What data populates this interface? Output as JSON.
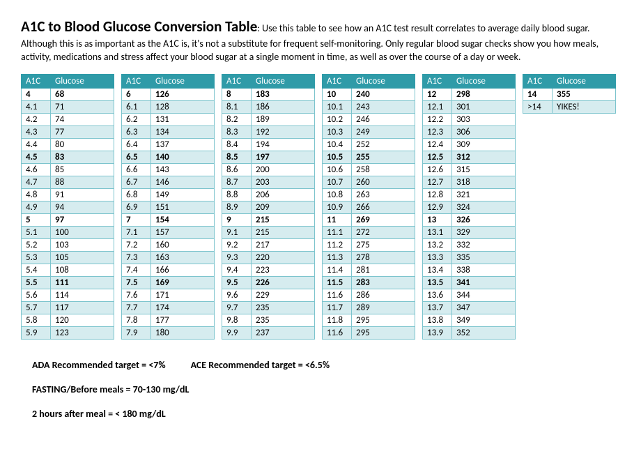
{
  "title_bold": "A1C to Blood Glucose Conversion Table",
  "title_rest": ": Use this table to see how an A1C test result correlates to average daily blood sugar.",
  "desc": "Although this is as important as the A1C is, it's not a substitute for frequent self-monitoring. Only regular blood sugar checks show you how meals, activity, medications and stress affect your blood sugar at a single moment in time, as well as over the course of a day or week.",
  "col_headers": {
    "a1c": "A1C",
    "glucose": "Glucose"
  },
  "colors": {
    "header_bg": "#2f9ba8",
    "header_text": "#ffffff",
    "row_alt_bg": "#d6ecef",
    "row_bg": "#ffffff",
    "border": "#7cc4cd",
    "text": "#000000"
  },
  "typography": {
    "font_family": "Calibri, Arial, sans-serif",
    "title_size_pt": 16,
    "body_size_pt": 11,
    "table_size_pt": 10
  },
  "tables": [
    {
      "rows": [
        {
          "a1c": "4",
          "g": "68",
          "bold": true,
          "alt": false
        },
        {
          "a1c": "4.1",
          "g": "71",
          "bold": false,
          "alt": true
        },
        {
          "a1c": "4.2",
          "g": "74",
          "bold": false,
          "alt": false
        },
        {
          "a1c": "4.3",
          "g": "77",
          "bold": false,
          "alt": true
        },
        {
          "a1c": "4.4",
          "g": "80",
          "bold": false,
          "alt": false
        },
        {
          "a1c": "4.5",
          "g": "83",
          "bold": true,
          "alt": true
        },
        {
          "a1c": "4.6",
          "g": "85",
          "bold": false,
          "alt": false
        },
        {
          "a1c": "4.7",
          "g": "88",
          "bold": false,
          "alt": true
        },
        {
          "a1c": "4.8",
          "g": "91",
          "bold": false,
          "alt": false
        },
        {
          "a1c": "4.9",
          "g": "94",
          "bold": false,
          "alt": true
        },
        {
          "a1c": "5",
          "g": "97",
          "bold": true,
          "alt": false
        },
        {
          "a1c": "5.1",
          "g": "100",
          "bold": false,
          "alt": true
        },
        {
          "a1c": "5.2",
          "g": "103",
          "bold": false,
          "alt": false
        },
        {
          "a1c": "5.3",
          "g": "105",
          "bold": false,
          "alt": true
        },
        {
          "a1c": "5.4",
          "g": "108",
          "bold": false,
          "alt": false
        },
        {
          "a1c": "5.5",
          "g": "111",
          "bold": true,
          "alt": true
        },
        {
          "a1c": "5.6",
          "g": "114",
          "bold": false,
          "alt": false
        },
        {
          "a1c": "5.7",
          "g": "117",
          "bold": false,
          "alt": true
        },
        {
          "a1c": "5.8",
          "g": "120",
          "bold": false,
          "alt": false
        },
        {
          "a1c": "5.9",
          "g": "123",
          "bold": false,
          "alt": true
        }
      ]
    },
    {
      "rows": [
        {
          "a1c": "6",
          "g": "126",
          "bold": true,
          "alt": false
        },
        {
          "a1c": "6.1",
          "g": "128",
          "bold": false,
          "alt": true
        },
        {
          "a1c": "6.2",
          "g": "131",
          "bold": false,
          "alt": false
        },
        {
          "a1c": "6.3",
          "g": "134",
          "bold": false,
          "alt": true
        },
        {
          "a1c": "6.4",
          "g": "137",
          "bold": false,
          "alt": false
        },
        {
          "a1c": "6.5",
          "g": "140",
          "bold": true,
          "alt": true
        },
        {
          "a1c": "6.6",
          "g": "143",
          "bold": false,
          "alt": false
        },
        {
          "a1c": "6.7",
          "g": "146",
          "bold": false,
          "alt": true
        },
        {
          "a1c": "6.8",
          "g": "149",
          "bold": false,
          "alt": false
        },
        {
          "a1c": "6.9",
          "g": "151",
          "bold": false,
          "alt": true
        },
        {
          "a1c": "7",
          "g": "154",
          "bold": true,
          "alt": false
        },
        {
          "a1c": "7.1",
          "g": "157",
          "bold": false,
          "alt": true
        },
        {
          "a1c": "7.2",
          "g": "160",
          "bold": false,
          "alt": false
        },
        {
          "a1c": "7.3",
          "g": "163",
          "bold": false,
          "alt": true
        },
        {
          "a1c": "7.4",
          "g": "166",
          "bold": false,
          "alt": false
        },
        {
          "a1c": "7.5",
          "g": "169",
          "bold": true,
          "alt": true
        },
        {
          "a1c": "7.6",
          "g": "171",
          "bold": false,
          "alt": false
        },
        {
          "a1c": "7.7",
          "g": "174",
          "bold": false,
          "alt": true
        },
        {
          "a1c": "7.8",
          "g": "177",
          "bold": false,
          "alt": false
        },
        {
          "a1c": "7.9",
          "g": "180",
          "bold": false,
          "alt": true
        }
      ]
    },
    {
      "rows": [
        {
          "a1c": "8",
          "g": "183",
          "bold": true,
          "alt": false
        },
        {
          "a1c": "8.1",
          "g": "186",
          "bold": false,
          "alt": true
        },
        {
          "a1c": "8.2",
          "g": "189",
          "bold": false,
          "alt": false
        },
        {
          "a1c": "8.3",
          "g": "192",
          "bold": false,
          "alt": true
        },
        {
          "a1c": "8.4",
          "g": "194",
          "bold": false,
          "alt": false
        },
        {
          "a1c": "8.5",
          "g": "197",
          "bold": true,
          "alt": true
        },
        {
          "a1c": "8.6",
          "g": "200",
          "bold": false,
          "alt": false
        },
        {
          "a1c": "8.7",
          "g": "203",
          "bold": false,
          "alt": true
        },
        {
          "a1c": "8.8",
          "g": "206",
          "bold": false,
          "alt": false
        },
        {
          "a1c": "8.9",
          "g": "209",
          "bold": false,
          "alt": true
        },
        {
          "a1c": "9",
          "g": "215",
          "bold": true,
          "alt": false
        },
        {
          "a1c": "9.1",
          "g": "215",
          "bold": false,
          "alt": true
        },
        {
          "a1c": "9.2",
          "g": "217",
          "bold": false,
          "alt": false
        },
        {
          "a1c": "9.3",
          "g": "220",
          "bold": false,
          "alt": true
        },
        {
          "a1c": "9.4",
          "g": "223",
          "bold": false,
          "alt": false
        },
        {
          "a1c": "9.5",
          "g": "226",
          "bold": true,
          "alt": true
        },
        {
          "a1c": "9.6",
          "g": "229",
          "bold": false,
          "alt": false
        },
        {
          "a1c": "9.7",
          "g": "235",
          "bold": false,
          "alt": true
        },
        {
          "a1c": "9.8",
          "g": "235",
          "bold": false,
          "alt": false
        },
        {
          "a1c": "9.9",
          "g": "237",
          "bold": false,
          "alt": true
        }
      ]
    },
    {
      "rows": [
        {
          "a1c": "10",
          "g": "240",
          "bold": true,
          "alt": false
        },
        {
          "a1c": "10.1",
          "g": "243",
          "bold": false,
          "alt": true
        },
        {
          "a1c": "10.2",
          "g": "246",
          "bold": false,
          "alt": false
        },
        {
          "a1c": "10.3",
          "g": "249",
          "bold": false,
          "alt": true
        },
        {
          "a1c": "10.4",
          "g": "252",
          "bold": false,
          "alt": false
        },
        {
          "a1c": "10.5",
          "g": "255",
          "bold": true,
          "alt": true
        },
        {
          "a1c": "10.6",
          "g": "258",
          "bold": false,
          "alt": false
        },
        {
          "a1c": "10.7",
          "g": "260",
          "bold": false,
          "alt": true
        },
        {
          "a1c": "10.8",
          "g": "263",
          "bold": false,
          "alt": false
        },
        {
          "a1c": "10.9",
          "g": "266",
          "bold": false,
          "alt": true
        },
        {
          "a1c": "11",
          "g": "269",
          "bold": true,
          "alt": false
        },
        {
          "a1c": "11.1",
          "g": "272",
          "bold": false,
          "alt": true
        },
        {
          "a1c": "11.2",
          "g": "275",
          "bold": false,
          "alt": false
        },
        {
          "a1c": "11.3",
          "g": "278",
          "bold": false,
          "alt": true
        },
        {
          "a1c": "11.4",
          "g": "281",
          "bold": false,
          "alt": false
        },
        {
          "a1c": "11.5",
          "g": "283",
          "bold": true,
          "alt": true
        },
        {
          "a1c": "11.6",
          "g": "286",
          "bold": false,
          "alt": false
        },
        {
          "a1c": "11.7",
          "g": "289",
          "bold": false,
          "alt": true
        },
        {
          "a1c": "11.8",
          "g": "295",
          "bold": false,
          "alt": false
        },
        {
          "a1c": "11.6",
          "g": "295",
          "bold": false,
          "alt": true
        }
      ]
    },
    {
      "rows": [
        {
          "a1c": "12",
          "g": "298",
          "bold": true,
          "alt": false
        },
        {
          "a1c": "12.1",
          "g": "301",
          "bold": false,
          "alt": true
        },
        {
          "a1c": "12.2",
          "g": "303",
          "bold": false,
          "alt": false
        },
        {
          "a1c": "12.3",
          "g": "306",
          "bold": false,
          "alt": true
        },
        {
          "a1c": "12.4",
          "g": "309",
          "bold": false,
          "alt": false
        },
        {
          "a1c": "12.5",
          "g": "312",
          "bold": true,
          "alt": true
        },
        {
          "a1c": "12.6",
          "g": "315",
          "bold": false,
          "alt": false
        },
        {
          "a1c": "12.7",
          "g": "318",
          "bold": false,
          "alt": true
        },
        {
          "a1c": "12.8",
          "g": "321",
          "bold": false,
          "alt": false
        },
        {
          "a1c": "12.9",
          "g": "324",
          "bold": false,
          "alt": true
        },
        {
          "a1c": "13",
          "g": "326",
          "bold": true,
          "alt": false
        },
        {
          "a1c": "13.1",
          "g": "329",
          "bold": false,
          "alt": true
        },
        {
          "a1c": "13.2",
          "g": "332",
          "bold": false,
          "alt": false
        },
        {
          "a1c": "13.3",
          "g": "335",
          "bold": false,
          "alt": true
        },
        {
          "a1c": "13.4",
          "g": "338",
          "bold": false,
          "alt": false
        },
        {
          "a1c": "13.5",
          "g": "341",
          "bold": true,
          "alt": true
        },
        {
          "a1c": "13.6",
          "g": "344",
          "bold": false,
          "alt": false
        },
        {
          "a1c": "13.7",
          "g": "347",
          "bold": false,
          "alt": true
        },
        {
          "a1c": "13.8",
          "g": "349",
          "bold": false,
          "alt": false
        },
        {
          "a1c": "13.9",
          "g": "352",
          "bold": false,
          "alt": true
        }
      ]
    },
    {
      "rows": [
        {
          "a1c": "14",
          "g": "355",
          "bold": true,
          "alt": false
        },
        {
          "a1c": ">14",
          "g": "YIKES!",
          "bold": false,
          "alt": true
        }
      ]
    }
  ],
  "notes": {
    "ada": "ADA Recommended target = <7%",
    "ace": "ACE Recommended target = <6.5%",
    "fasting": "FASTING/Before meals = 70-130 mg/dL",
    "after_meal": "2 hours after meal = < 180 mg/dL"
  }
}
